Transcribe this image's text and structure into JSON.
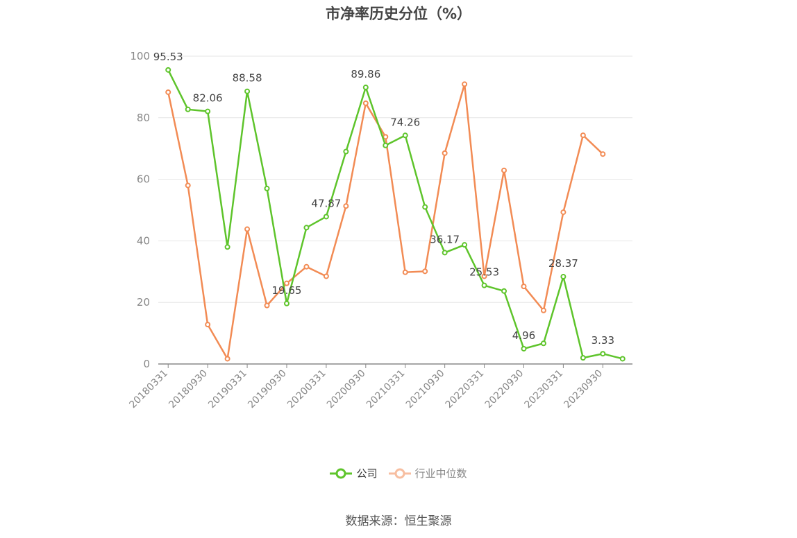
{
  "chart_data": {
    "type": "line",
    "title": "市净率历史分位（%）",
    "categories": [
      "20180331",
      "20180630",
      "20180930",
      "20181231",
      "20190331",
      "20190630",
      "20190930",
      "20191231",
      "20200331",
      "20200630",
      "20200930",
      "20201231",
      "20210331",
      "20210630",
      "20210930",
      "20211231",
      "20220331",
      "20220630",
      "20220930",
      "20221231",
      "20230331",
      "20230630",
      "20230930",
      "20231231"
    ],
    "x_tick_labels": [
      "20180331",
      "20180930",
      "20190331",
      "20190930",
      "20200331",
      "20200930",
      "20210331",
      "20210930",
      "20220331",
      "20220930",
      "20230331",
      "20230930"
    ],
    "ylim": [
      0,
      100
    ],
    "y_ticks": [
      "0",
      "20",
      "40",
      "60",
      "80",
      "100"
    ],
    "grid": true,
    "legend_position": "bottom",
    "series": [
      {
        "name": "公司",
        "color": "#5ec42b",
        "values": [
          95.53,
          82.7,
          82.06,
          38.0,
          88.58,
          57.0,
          19.65,
          44.3,
          47.87,
          69.0,
          89.86,
          71.0,
          74.26,
          51.0,
          36.17,
          38.7,
          25.53,
          23.7,
          4.96,
          6.7,
          28.37,
          2.0,
          3.33,
          1.7
        ],
        "data_labels": [
          "95.53",
          null,
          "82.06",
          null,
          "88.58",
          null,
          "19.65",
          null,
          "47.87",
          null,
          "89.86",
          null,
          "74.26",
          null,
          "36.17",
          null,
          "25.53",
          null,
          "4.96",
          null,
          "28.37",
          null,
          "3.33",
          null
        ]
      },
      {
        "name": "行业中位数",
        "color": "#f28b54",
        "values": [
          88.3,
          58.0,
          12.8,
          1.7,
          43.8,
          19.0,
          26.2,
          31.6,
          28.5,
          51.3,
          84.7,
          73.8,
          29.8,
          30.1,
          68.5,
          90.9,
          28.5,
          62.9,
          25.2,
          17.4,
          49.3,
          74.3,
          68.2,
          null
        ]
      }
    ]
  },
  "legend": {
    "company_label": "公司",
    "industry_label": "行业中位数"
  },
  "source_text": "数据来源：恒生聚源"
}
